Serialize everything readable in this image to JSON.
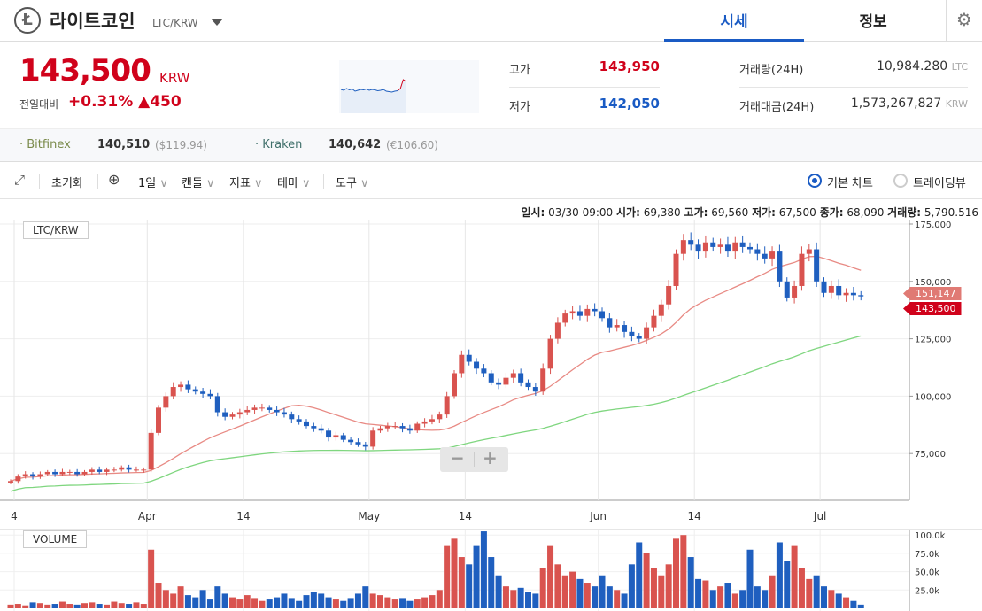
{
  "header": {
    "title": "라이트코인",
    "pair": "LTC/KRW",
    "tabs": [
      "시세",
      "정보"
    ]
  },
  "summary": {
    "price": "143,500",
    "currency": "KRW",
    "change_label": "전일대비",
    "change_pct": "+0.31%",
    "change_abs": "▲450",
    "high_label": "고가",
    "high": "143,950",
    "low_label": "저가",
    "low": "142,050",
    "vol_label": "거래량(24H)",
    "vol": "10,984.280",
    "vol_unit": "LTC",
    "amt_label": "거래대금(24H)",
    "amt": "1,573,267,827",
    "amt_unit": "KRW"
  },
  "sparkline": [
    62,
    64,
    60,
    63,
    61,
    66,
    64,
    62,
    63,
    61,
    64,
    62,
    63,
    65,
    64,
    62,
    66,
    67,
    68,
    66,
    65,
    60,
    40,
    44
  ],
  "exchanges": [
    {
      "name": "Bitfinex",
      "price": "140,510",
      "alt": "($119.94)"
    },
    {
      "name": "Kraken",
      "price": "140,642",
      "alt": "(€106.60)"
    }
  ],
  "toolbar": {
    "reset": "초기화",
    "period": "1일",
    "candle": "캔들",
    "indicator": "지표",
    "theme": "테마",
    "tools": "도구",
    "basic": "기본 차트",
    "tv": "트레이딩뷰"
  },
  "ohlc_info": {
    "date_l": "일시:",
    "date": "03/30 09:00",
    "open_l": "시가:",
    "open": "69,380",
    "high_l": "고가:",
    "high": "69,560",
    "low_l": "저가:",
    "low": "67,500",
    "close_l": "종가:",
    "close": "68,090",
    "vol_l": "거래량:",
    "vol": "5,790.516"
  },
  "chart_data": {
    "type": "candlestick",
    "pair_label": "LTC/KRW",
    "volume_label": "VOLUME",
    "price_ticks": [
      "175,000",
      "150,000",
      "125,000",
      "100,000",
      "75,000"
    ],
    "price_tick_values": [
      175000,
      150000,
      125000,
      100000,
      75000
    ],
    "volume_ticks": [
      "100.0k",
      "75.0k",
      "50.0k",
      "25.0k"
    ],
    "volume_tick_values": [
      100,
      75,
      50,
      25
    ],
    "date_ticks": [
      {
        "label": "4",
        "day": 0
      },
      {
        "label": "Apr",
        "day": 18
      },
      {
        "label": "14",
        "day": 31
      },
      {
        "label": "May",
        "day": 48
      },
      {
        "label": "14",
        "day": 61
      },
      {
        "label": "Jun",
        "day": 79
      },
      {
        "label": "14",
        "day": 92
      },
      {
        "label": "Jul",
        "day": 109
      }
    ],
    "last_price_label": "143,500",
    "ma_label": "151,147",
    "closes_k": [
      63,
      65,
      66,
      65,
      66,
      67,
      66,
      67,
      67,
      66,
      67,
      68,
      67,
      68,
      68,
      69,
      68,
      68,
      68,
      84,
      95,
      100,
      104,
      105,
      103,
      102,
      101,
      100,
      93,
      91,
      92,
      93,
      94,
      95,
      95,
      94,
      93,
      92,
      90,
      89,
      87,
      86,
      85,
      82,
      83,
      81,
      80,
      79,
      78,
      85,
      86,
      87,
      87,
      86,
      85,
      88,
      89,
      90,
      92,
      100,
      110,
      118,
      115,
      112,
      110,
      106,
      105,
      108,
      110,
      106,
      104,
      102,
      112,
      125,
      132,
      136,
      137,
      135,
      138,
      137,
      134,
      130,
      131,
      128,
      126,
      125,
      130,
      135,
      140,
      148,
      162,
      168,
      166,
      163,
      167,
      165,
      166,
      163,
      167,
      165,
      164,
      162,
      160,
      163,
      150,
      143,
      148,
      162,
      164,
      150,
      145,
      148,
      144,
      145,
      144,
      143.5
    ],
    "volumes_k": [
      5,
      6,
      4,
      8,
      7,
      5,
      6,
      9,
      6,
      5,
      7,
      8,
      6,
      5,
      9,
      7,
      6,
      8,
      6,
      80,
      35,
      25,
      20,
      30,
      18,
      15,
      25,
      12,
      30,
      20,
      15,
      12,
      18,
      14,
      10,
      12,
      15,
      20,
      14,
      10,
      18,
      22,
      20,
      15,
      12,
      10,
      14,
      20,
      30,
      20,
      18,
      15,
      12,
      14,
      10,
      12,
      15,
      18,
      25,
      85,
      95,
      70,
      60,
      85,
      105,
      70,
      45,
      30,
      25,
      28,
      22,
      20,
      55,
      85,
      60,
      45,
      50,
      40,
      35,
      30,
      45,
      30,
      25,
      20,
      60,
      90,
      75,
      55,
      45,
      60,
      95,
      100,
      70,
      40,
      38,
      25,
      30,
      35,
      20,
      25,
      80,
      30,
      25,
      45,
      90,
      65,
      85,
      55,
      40,
      45,
      30,
      25,
      20,
      15,
      10,
      5
    ]
  },
  "colors": {
    "up": "#d9534f",
    "down": "#1f5fbf",
    "ma20": "#e88a84",
    "ma60": "#7fd67f"
  }
}
